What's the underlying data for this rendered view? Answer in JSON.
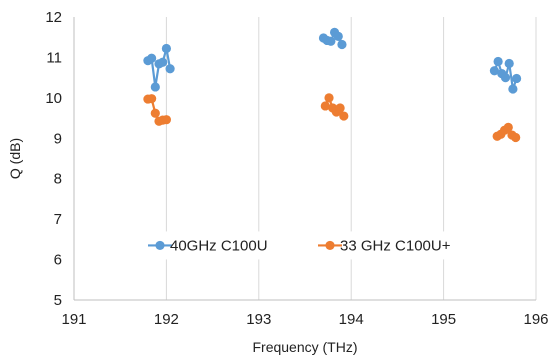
{
  "chart_data": {
    "type": "line",
    "xlabel": "Frequency (THz)",
    "ylabel": "Q (dB)",
    "xlim": [
      191,
      196
    ],
    "ylim": [
      5,
      12
    ],
    "xticks": [
      191,
      192,
      193,
      194,
      195,
      196
    ],
    "yticks": [
      5,
      6,
      7,
      8,
      9,
      10,
      11,
      12
    ],
    "grid": "vertical",
    "legend_position": "inside-lower-center",
    "series": [
      {
        "name": "40GHz C100U",
        "color": "#5b9bd5",
        "points": [
          {
            "x": 191.8,
            "y": 10.92
          },
          {
            "x": 191.84,
            "y": 10.98
          },
          {
            "x": 191.88,
            "y": 10.27
          },
          {
            "x": 191.92,
            "y": 10.84
          },
          {
            "x": 191.96,
            "y": 10.88
          },
          {
            "x": 192.0,
            "y": 11.22
          },
          {
            "x": 192.04,
            "y": 10.72
          },
          {
            "x": 193.7,
            "y": 11.48
          },
          {
            "x": 193.74,
            "y": 11.42
          },
          {
            "x": 193.78,
            "y": 11.4
          },
          {
            "x": 193.82,
            "y": 11.62
          },
          {
            "x": 193.86,
            "y": 11.52
          },
          {
            "x": 193.9,
            "y": 11.32
          },
          {
            "x": 195.55,
            "y": 10.67
          },
          {
            "x": 195.59,
            "y": 10.9
          },
          {
            "x": 195.63,
            "y": 10.6
          },
          {
            "x": 195.67,
            "y": 10.5
          },
          {
            "x": 195.71,
            "y": 10.85
          },
          {
            "x": 195.75,
            "y": 10.22
          },
          {
            "x": 195.79,
            "y": 10.48
          }
        ]
      },
      {
        "name": "33 GHz C100U+",
        "color": "#ed7d31",
        "points": [
          {
            "x": 191.8,
            "y": 9.97
          },
          {
            "x": 191.84,
            "y": 9.98
          },
          {
            "x": 191.88,
            "y": 9.62
          },
          {
            "x": 191.92,
            "y": 9.42
          },
          {
            "x": 191.96,
            "y": 9.45
          },
          {
            "x": 192.0,
            "y": 9.46
          },
          {
            "x": 193.72,
            "y": 9.8
          },
          {
            "x": 193.76,
            "y": 10.0
          },
          {
            "x": 193.8,
            "y": 9.75
          },
          {
            "x": 193.84,
            "y": 9.65
          },
          {
            "x": 193.88,
            "y": 9.75
          },
          {
            "x": 193.92,
            "y": 9.55
          },
          {
            "x": 195.58,
            "y": 9.05
          },
          {
            "x": 195.62,
            "y": 9.1
          },
          {
            "x": 195.66,
            "y": 9.2
          },
          {
            "x": 195.7,
            "y": 9.27
          },
          {
            "x": 195.74,
            "y": 9.08
          },
          {
            "x": 195.78,
            "y": 9.02
          }
        ]
      }
    ]
  }
}
